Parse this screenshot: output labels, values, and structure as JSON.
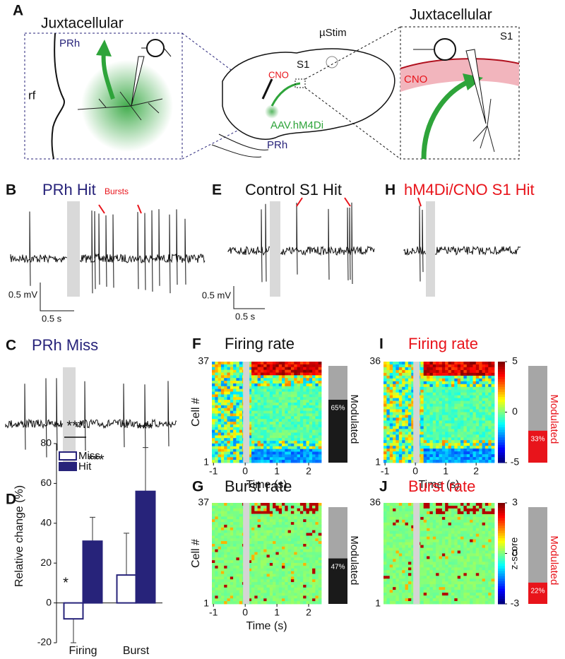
{
  "diagram": {
    "letter": "A",
    "left": {
      "title": "Juxtacellular",
      "region": "PRh",
      "fissure": "rf"
    },
    "middle": {
      "stim": "µStim",
      "area": "S1",
      "drug": "CNO",
      "virus": "AAV.hM4Di",
      "region": "PRh"
    },
    "right": {
      "title": "Juxtacellular",
      "area": "S1",
      "drug": "CNO"
    }
  },
  "traces": [
    {
      "letter": "B",
      "title": "PRh Hit",
      "title_color": "#27237a",
      "annotation": "Bursts",
      "scale_v": "0.5 mV",
      "scale_t": "0.5 s"
    },
    {
      "letter": "C",
      "title": "PRh Miss",
      "title_color": "#27237a"
    },
    {
      "letter": "E",
      "title": "Control S1 Hit",
      "title_color": "#111111",
      "scale_v": "0.5 mV",
      "scale_t": "0.5 s"
    },
    {
      "letter": "H",
      "title": "hM4Di/CNO S1 Hit",
      "title_color": "#e8141b"
    }
  ],
  "heatmaps": [
    {
      "letter": "F",
      "title": "Firing rate",
      "title_color": "#111111",
      "ylabel": "Cell #",
      "ylim": [
        1,
        37
      ],
      "yticks": [
        1,
        37
      ],
      "xlim": [
        -1.05,
        2.4
      ],
      "xticks": [
        -1,
        0,
        1,
        2
      ],
      "xlabel": "Time (s)",
      "modulated": {
        "label": "Modulated",
        "value": 65,
        "value_label": "65%",
        "color": "#1a1a1a"
      }
    },
    {
      "letter": "G",
      "title": "Burst rate",
      "title_color": "#111111",
      "ylabel": "Cell #",
      "ylim": [
        1,
        37
      ],
      "yticks": [
        1,
        37
      ],
      "xlim": [
        -1.05,
        2.4
      ],
      "xticks": [
        -1,
        0,
        1,
        2
      ],
      "xlabel": "Time (s)",
      "modulated": {
        "label": "Modulated",
        "value": 47,
        "value_label": "47%",
        "color": "#1a1a1a"
      }
    },
    {
      "letter": "I",
      "title": "Firing rate",
      "title_color": "#e8141b",
      "ylim": [
        1,
        36
      ],
      "yticks": [
        1,
        36
      ],
      "xlim": [
        -1.05,
        2.6
      ],
      "xticks": [
        -1,
        0,
        1,
        2
      ],
      "xlabel": "Time (s)",
      "colorbar": {
        "lim": [
          -5,
          5
        ],
        "ticks": [
          -5,
          0,
          5
        ]
      },
      "modulated": {
        "label": "Modulated",
        "value": 33,
        "value_label": "33%",
        "color": "#e8141b"
      }
    },
    {
      "letter": "J",
      "title": "Burst rate",
      "title_color": "#e8141b",
      "ylim": [
        1,
        36
      ],
      "yticks": [
        1,
        36
      ],
      "colorbar": {
        "lim": [
          -3,
          3
        ],
        "ticks": [
          -3,
          0,
          3
        ],
        "label": "z-score"
      },
      "modulated": {
        "label": "Modulated",
        "value": 22,
        "value_label": "22%",
        "color": "#e8141b"
      }
    }
  ],
  "chart_data": {
    "type": "bar",
    "letter": "D",
    "ylabel": "Relative change (%)",
    "categories": [
      "Firing",
      "Burst"
    ],
    "series": [
      {
        "name": "Miss",
        "color": "#27237a",
        "filled": false,
        "values": [
          -8,
          14
        ],
        "errors": [
          12,
          21
        ]
      },
      {
        "name": "Hit",
        "color": "#27237a",
        "filled": true,
        "values": [
          31,
          56
        ],
        "errors": [
          12,
          22
        ]
      }
    ],
    "annotations": [
      "*",
      "***",
      "***",
      "***"
    ],
    "ylim": [
      -20,
      80
    ],
    "yticks": [
      -20,
      0,
      20,
      40,
      60,
      80
    ]
  }
}
